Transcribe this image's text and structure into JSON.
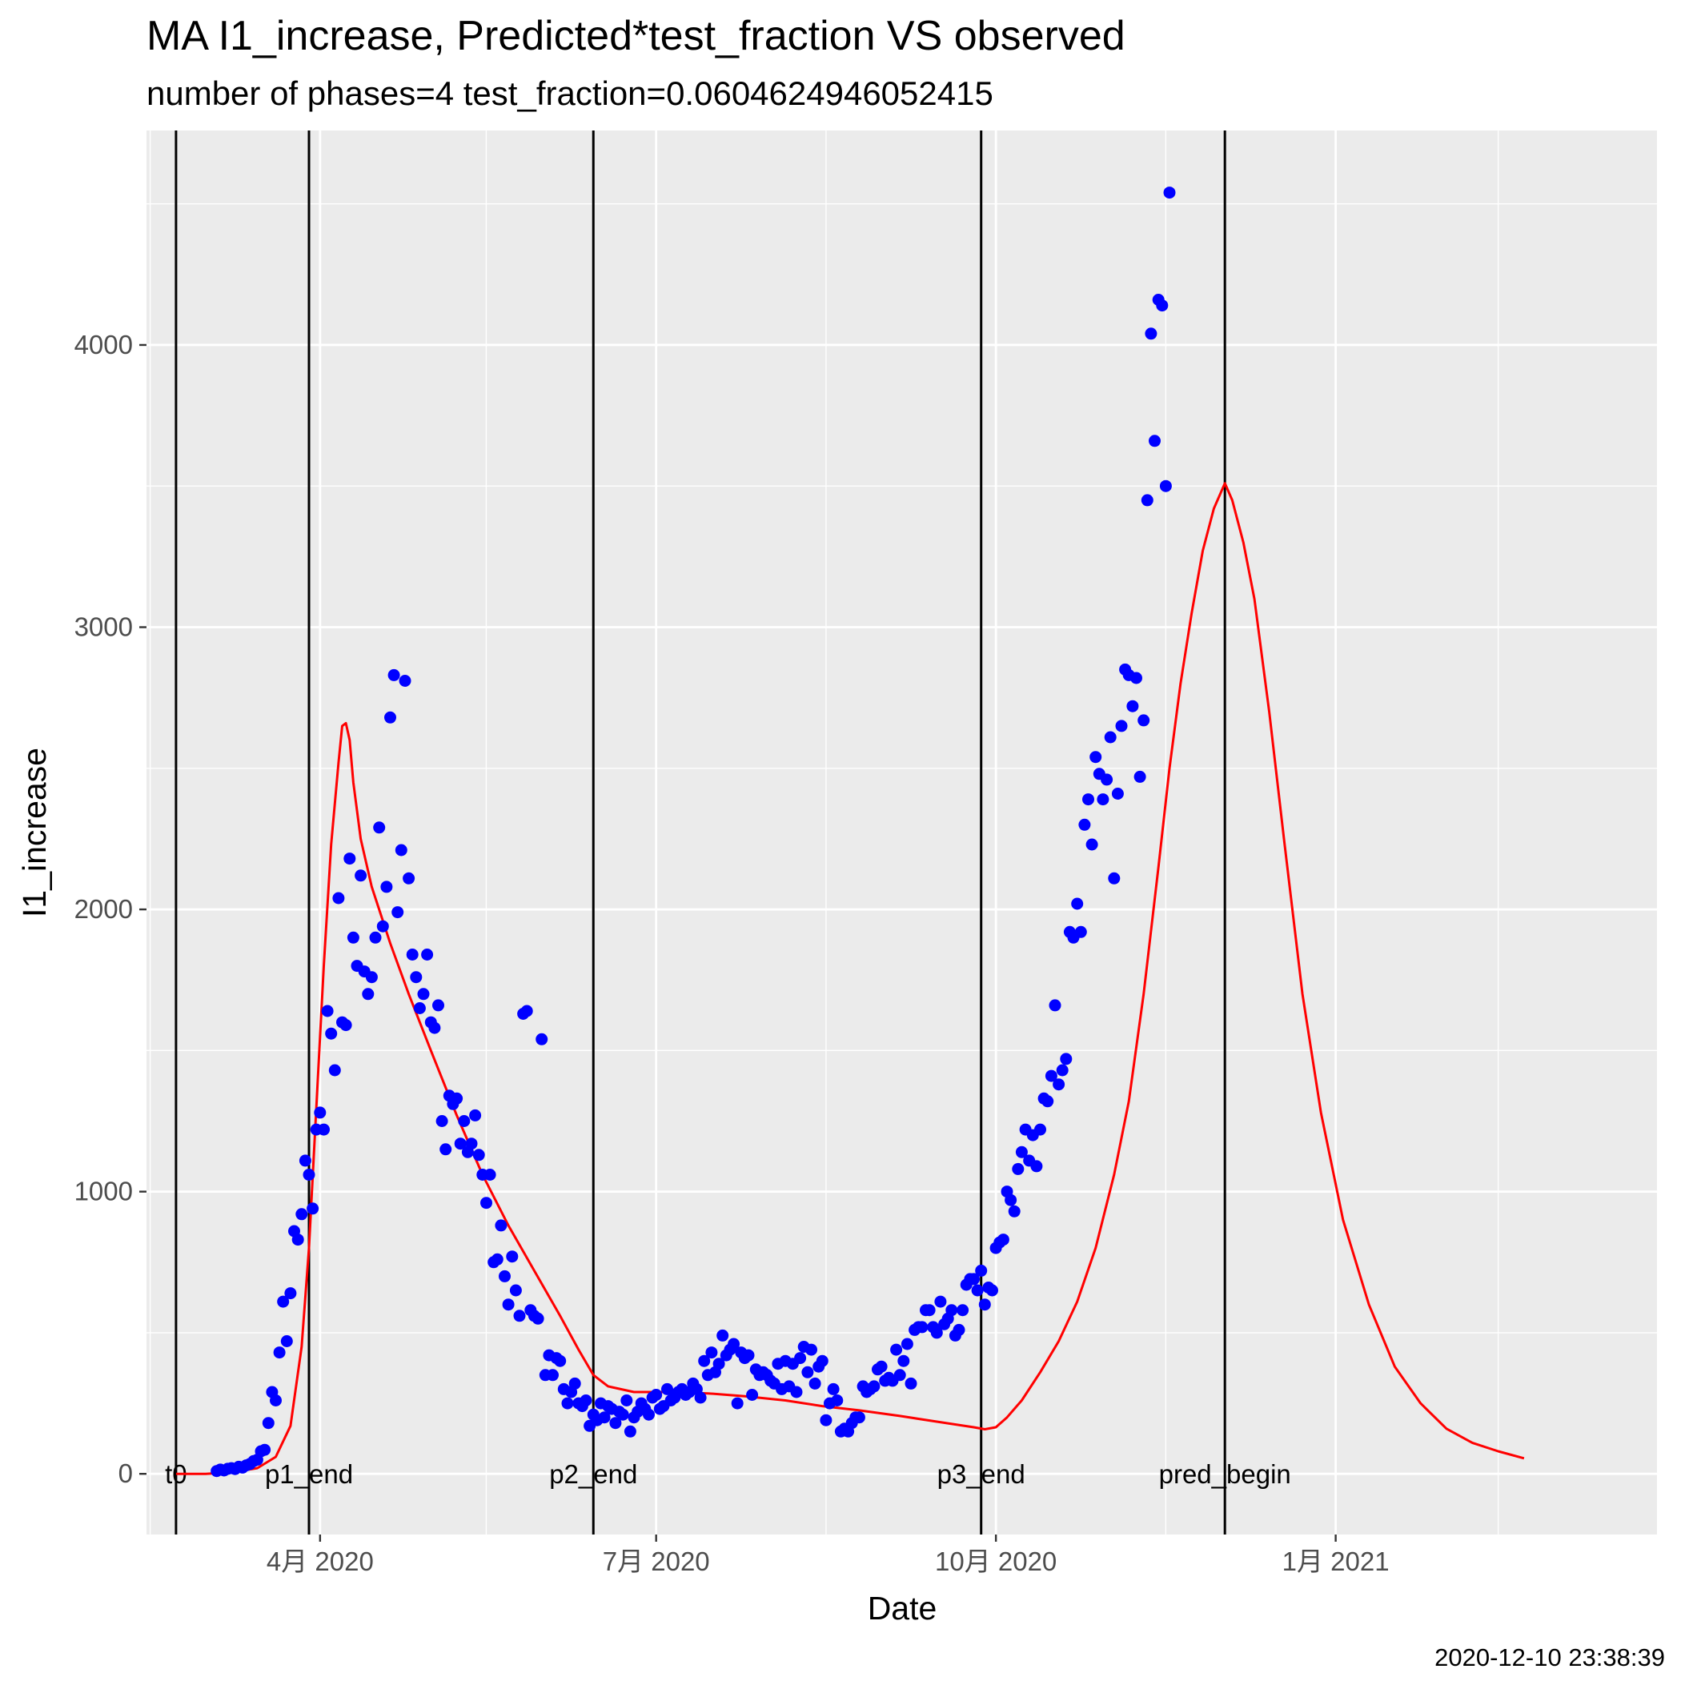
{
  "chart_data": {
    "type": "scatter",
    "title": "MA I1_increase, Predicted*test_fraction VS observed",
    "subtitle": "number of phases=4   test_fraction=0.0604624946052415",
    "xlabel": "Date",
    "ylabel": "I1_increase",
    "xlim": [
      "2020-02-14",
      "2021-03-29"
    ],
    "ylim": [
      -215,
      4760
    ],
    "grid": true,
    "legend": "none",
    "x_ticks": [
      {
        "date": "2020-04-01",
        "label": "4月 2020"
      },
      {
        "date": "2020-07-01",
        "label": "7月 2020"
      },
      {
        "date": "2020-10-01",
        "label": "10月 2020"
      },
      {
        "date": "2021-01-01",
        "label": "1月 2021"
      }
    ],
    "x_minor_ticks": [
      "2020-02-15",
      "2020-05-16",
      "2020-08-16",
      "2020-11-16",
      "2021-02-14"
    ],
    "y_ticks": [
      0,
      1000,
      2000,
      3000,
      4000
    ],
    "y_minor_ticks": [
      500,
      1500,
      2500,
      3500,
      4500
    ],
    "vlines": [
      {
        "date": "2020-02-22",
        "label": "t0"
      },
      {
        "date": "2020-03-29",
        "label": "p1_end"
      },
      {
        "date": "2020-06-14",
        "label": "p2_end"
      },
      {
        "date": "2020-09-27",
        "label": "p3_end"
      },
      {
        "date": "2020-12-02",
        "label": "pred_begin"
      }
    ],
    "observed": {
      "color": "#0000ff",
      "start": "2020-03-04",
      "values": [
        10,
        15,
        12,
        18,
        20,
        17,
        25,
        22,
        30,
        35,
        45,
        50,
        80,
        85,
        180,
        290,
        260,
        430,
        610,
        470,
        640,
        860,
        830,
        920,
        1110,
        1060,
        940,
        1220,
        1280,
        1220,
        1640,
        1560,
        1430,
        2040,
        1600,
        1590,
        2180,
        1900,
        1800,
        2120,
        1780,
        1700,
        1760,
        1900,
        2290,
        1940,
        2080,
        2680,
        2830,
        1990,
        2210,
        2810,
        2110,
        1840,
        1760,
        1650,
        1700,
        1840,
        1600,
        1580,
        1660,
        1250,
        1150,
        1340,
        1310,
        1330,
        1170,
        1250,
        1140,
        1170,
        1270,
        1130,
        1060,
        960,
        1060,
        750,
        760,
        880,
        700,
        600,
        770,
        650,
        560,
        1630,
        1640,
        580,
        560,
        550,
        1540,
        350,
        420,
        350,
        410,
        400,
        300,
        250,
        290,
        320,
        250,
        240,
        260,
        170,
        210,
        190,
        250,
        200,
        240,
        230,
        180,
        220,
        210,
        260,
        150,
        200,
        220,
        250,
        230,
        210,
        270,
        280,
        230,
        240,
        300,
        260,
        270,
        290,
        300,
        280,
        290,
        320,
        300,
        270,
        400,
        350,
        430,
        360,
        390,
        490,
        420,
        440,
        460,
        250,
        430,
        410,
        420,
        280,
        370,
        350,
        360,
        350,
        330,
        320,
        390,
        300,
        400,
        310,
        390,
        290,
        410,
        450,
        360,
        440,
        320,
        380,
        400,
        190,
        250,
        300,
        260,
        150,
        160,
        150,
        180,
        200,
        200,
        310,
        290,
        300,
        310,
        370,
        380,
        330,
        340,
        330,
        440,
        350,
        400,
        460,
        320,
        510,
        520,
        520,
        580,
        580,
        520,
        500,
        610,
        530,
        550,
        580,
        490,
        510,
        580,
        670,
        690,
        690,
        650,
        720,
        600,
        660,
        650,
        800,
        820,
        830,
        1000,
        970,
        930,
        1080,
        1140,
        1220,
        1110,
        1200,
        1090,
        1220,
        1330,
        1320,
        1410,
        1660,
        1380,
        1430,
        1470,
        1920,
        1900,
        2020,
        1920,
        2300,
        2390,
        2230,
        2540,
        2480,
        2390,
        2460,
        2610,
        2110,
        2410,
        2650,
        2850,
        2830,
        2720,
        2820,
        2470,
        2670,
        3450,
        4040,
        3660,
        4160,
        4140,
        3500,
        4540
      ]
    },
    "predicted": {
      "color": "#ff0000",
      "points": [
        [
          "2020-02-22",
          0
        ],
        [
          "2020-03-01",
          0
        ],
        [
          "2020-03-08",
          5
        ],
        [
          "2020-03-15",
          20
        ],
        [
          "2020-03-20",
          60
        ],
        [
          "2020-03-24",
          170
        ],
        [
          "2020-03-27",
          450
        ],
        [
          "2020-03-29",
          800
        ],
        [
          "2020-03-31",
          1300
        ],
        [
          "2020-04-02",
          1800
        ],
        [
          "2020-04-04",
          2230
        ],
        [
          "2020-04-06",
          2520
        ],
        [
          "2020-04-07",
          2650
        ],
        [
          "2020-04-08",
          2660
        ],
        [
          "2020-04-09",
          2600
        ],
        [
          "2020-04-10",
          2450
        ],
        [
          "2020-04-12",
          2250
        ],
        [
          "2020-04-15",
          2080
        ],
        [
          "2020-04-20",
          1880
        ],
        [
          "2020-04-25",
          1700
        ],
        [
          "2020-05-01",
          1500
        ],
        [
          "2020-05-08",
          1270
        ],
        [
          "2020-05-15",
          1060
        ],
        [
          "2020-05-22",
          880
        ],
        [
          "2020-05-29",
          720
        ],
        [
          "2020-06-05",
          560
        ],
        [
          "2020-06-10",
          440
        ],
        [
          "2020-06-14",
          350
        ],
        [
          "2020-06-18",
          310
        ],
        [
          "2020-06-25",
          290
        ],
        [
          "2020-07-05",
          290
        ],
        [
          "2020-07-15",
          285
        ],
        [
          "2020-07-25",
          275
        ],
        [
          "2020-08-05",
          260
        ],
        [
          "2020-08-15",
          240
        ],
        [
          "2020-08-25",
          225
        ],
        [
          "2020-09-05",
          205
        ],
        [
          "2020-09-15",
          185
        ],
        [
          "2020-09-25",
          165
        ],
        [
          "2020-09-28",
          158
        ],
        [
          "2020-10-01",
          165
        ],
        [
          "2020-10-04",
          200
        ],
        [
          "2020-10-08",
          260
        ],
        [
          "2020-10-13",
          360
        ],
        [
          "2020-10-18",
          470
        ],
        [
          "2020-10-23",
          610
        ],
        [
          "2020-10-28",
          800
        ],
        [
          "2020-11-02",
          1060
        ],
        [
          "2020-11-06",
          1320
        ],
        [
          "2020-11-10",
          1700
        ],
        [
          "2020-11-14",
          2150
        ],
        [
          "2020-11-17",
          2500
        ],
        [
          "2020-11-20",
          2800
        ],
        [
          "2020-11-23",
          3050
        ],
        [
          "2020-11-26",
          3270
        ],
        [
          "2020-11-29",
          3420
        ],
        [
          "2020-12-02",
          3510
        ],
        [
          "2020-12-04",
          3450
        ],
        [
          "2020-12-07",
          3300
        ],
        [
          "2020-12-10",
          3100
        ],
        [
          "2020-12-14",
          2700
        ],
        [
          "2020-12-18",
          2250
        ],
        [
          "2020-12-23",
          1700
        ],
        [
          "2020-12-28",
          1280
        ],
        [
          "2021-01-03",
          900
        ],
        [
          "2021-01-10",
          600
        ],
        [
          "2021-01-17",
          380
        ],
        [
          "2021-01-24",
          250
        ],
        [
          "2021-01-31",
          160
        ],
        [
          "2021-02-07",
          110
        ],
        [
          "2021-02-14",
          80
        ],
        [
          "2021-02-21",
          55
        ]
      ]
    }
  },
  "footer": {
    "timestamp": "2020-12-10 23:38:39"
  }
}
